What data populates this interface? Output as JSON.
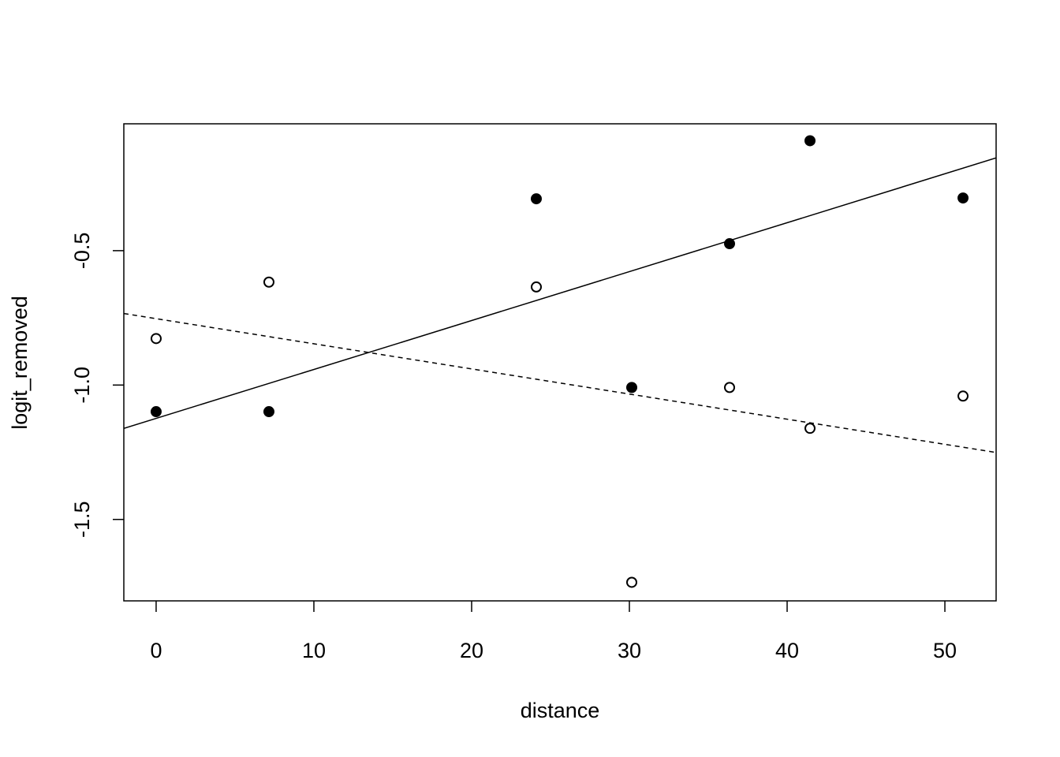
{
  "chart_data": {
    "type": "scatter",
    "xlabel": "distance",
    "ylabel": "logit_removed",
    "xlim": [
      -2.048,
      53.248
    ],
    "ylim": [
      -1.803,
      -0.028
    ],
    "xticks": [
      0,
      10,
      20,
      30,
      40,
      50
    ],
    "yticks": [
      -1.5,
      {
        "value": -1.0,
        "label": "-1.0"
      },
      -0.5
    ],
    "series": [
      {
        "color": "#000000",
        "marker": "filled",
        "x": [
          0,
          7.15,
          24.1,
          30.15,
          36.35,
          41.45,
          51.15
        ],
        "values": [
          -1.099,
          -1.099,
          -0.307,
          -1.009,
          -0.474,
          -0.091,
          -0.304
        ]
      },
      {
        "color": "#000000",
        "marker": "open",
        "x": [
          0,
          7.15,
          24.1,
          30.15,
          36.35,
          41.45,
          51.15
        ],
        "values": [
          -0.827,
          -0.617,
          -0.635,
          -1.734,
          -1.009,
          -1.161,
          -1.041
        ]
      }
    ],
    "lines": [
      {
        "intercept": -1.124,
        "slope": 0.0182,
        "dash": false
      },
      {
        "intercept": -0.753,
        "slope": -0.00935,
        "dash": true
      }
    ]
  }
}
